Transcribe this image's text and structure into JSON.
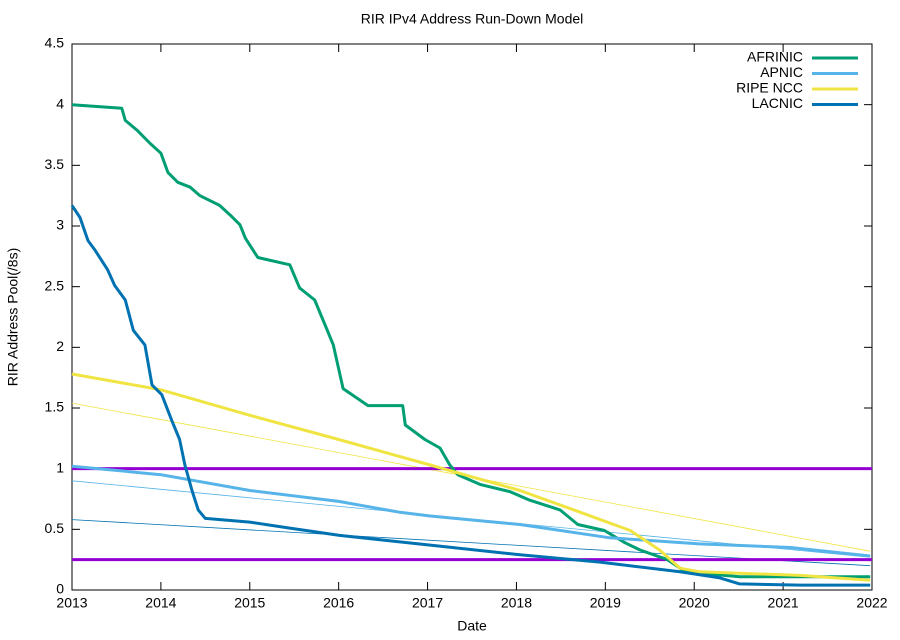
{
  "chart_data": {
    "type": "line",
    "title": "RIR IPv4 Address Run-Down Model",
    "x_label": "Date",
    "y_label": "RIR Address Pool(/8s)",
    "xlim": [
      2013,
      2022
    ],
    "xticks": [
      2013,
      2014,
      2015,
      2016,
      2017,
      2018,
      2019,
      2020,
      2021,
      2022
    ],
    "ylim": [
      0,
      4.5
    ],
    "yticks": [
      0,
      0.5,
      1,
      1.5,
      2,
      2.5,
      3,
      3.5,
      4,
      4.5
    ],
    "legend": "top-right",
    "series": [
      {
        "name": "AFRINIC",
        "color": "#009e73",
        "x": [
          2013.0,
          2013.56,
          2013.6,
          2013.73,
          2013.88,
          2014.0,
          2014.08,
          2014.19,
          2014.33,
          2014.44,
          2014.66,
          2014.78,
          2014.89,
          2014.95,
          2015.09,
          2015.45,
          2015.56,
          2015.73,
          2015.85,
          2015.94,
          2016.05,
          2016.33,
          2016.72,
          2016.75,
          2016.97,
          2017.14,
          2017.25,
          2017.34,
          2017.59,
          2017.93,
          2018.15,
          2018.49,
          2018.69,
          2018.99,
          2019.22,
          2019.39,
          2019.7,
          2019.9,
          2020.51,
          2021.98
        ],
        "values": [
          4.0,
          3.97,
          3.87,
          3.79,
          3.68,
          3.6,
          3.44,
          3.36,
          3.32,
          3.25,
          3.17,
          3.09,
          3.01,
          2.9,
          2.74,
          2.68,
          2.49,
          2.39,
          2.18,
          2.02,
          1.66,
          1.52,
          1.52,
          1.36,
          1.24,
          1.17,
          1.03,
          0.95,
          0.87,
          0.81,
          0.74,
          0.66,
          0.54,
          0.49,
          0.39,
          0.33,
          0.25,
          0.15,
          0.11,
          0.11
        ]
      },
      {
        "name": "APNIC",
        "color": "#56b4e9",
        "x": [
          2013.0,
          2014.0,
          2015.0,
          2016.0,
          2016.69,
          2017.03,
          2018.04,
          2019.05,
          2020.06,
          2021.08,
          2021.98
        ],
        "values": [
          1.02,
          0.95,
          0.82,
          0.73,
          0.64,
          0.61,
          0.54,
          0.43,
          0.38,
          0.35,
          0.28
        ]
      },
      {
        "name": "RIPE NCC",
        "color": "#f0e442",
        "x": [
          2013.0,
          2014.0,
          2015.0,
          2016.0,
          2017.03,
          2018.04,
          2018.72,
          2019.28,
          2019.61,
          2019.84,
          2020.06,
          2021.19,
          2021.98
        ],
        "values": [
          1.78,
          1.65,
          1.44,
          1.24,
          1.03,
          0.82,
          0.64,
          0.49,
          0.33,
          0.18,
          0.15,
          0.12,
          0.08
        ]
      },
      {
        "name": "LACNIC",
        "color": "#0072b2",
        "x": [
          2013.0,
          2013.09,
          2013.18,
          2013.26,
          2013.4,
          2013.48,
          2013.6,
          2013.69,
          2013.82,
          2013.9,
          2014.01,
          2014.12,
          2014.21,
          2014.27,
          2014.35,
          2014.42,
          2014.5,
          2015.0,
          2015.45,
          2016.01,
          2017.03,
          2018.04,
          2018.94,
          2019.84,
          2020.29,
          2020.51,
          2021.19,
          2021.98
        ],
        "values": [
          3.17,
          3.07,
          2.88,
          2.8,
          2.64,
          2.51,
          2.39,
          2.14,
          2.02,
          1.69,
          1.61,
          1.4,
          1.24,
          1.03,
          0.82,
          0.66,
          0.59,
          0.56,
          0.51,
          0.45,
          0.37,
          0.29,
          0.23,
          0.15,
          0.1,
          0.05,
          0.04,
          0.04
        ]
      }
    ],
    "trends": [
      {
        "color": "#f0e442",
        "x": [
          2013.0,
          2021.98
        ],
        "values": [
          1.54,
          0.32
        ]
      },
      {
        "color": "#56b4e9",
        "x": [
          2013.0,
          2021.98
        ],
        "values": [
          0.9,
          0.27
        ]
      },
      {
        "color": "#0072b2",
        "x": [
          2013.0,
          2021.98
        ],
        "values": [
          0.58,
          0.2
        ]
      }
    ],
    "hlines": {
      "color": "#9400d3",
      "values": [
        1,
        0.25
      ]
    }
  }
}
